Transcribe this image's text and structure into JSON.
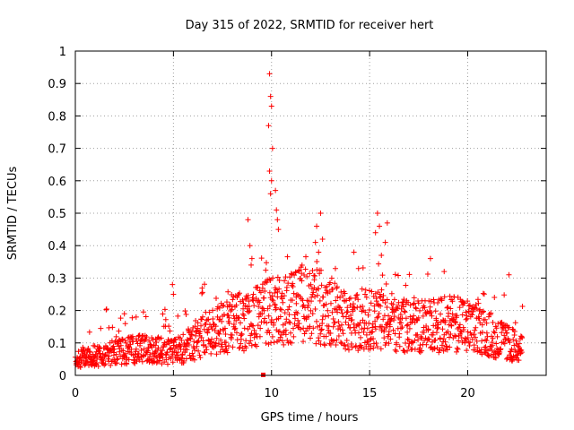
{
  "chart_data": {
    "type": "scatter",
    "title": "Day 315 of 2022, SRMTID for receiver hert",
    "xlabel": "GPS time / hours",
    "ylabel": "SRMTID / TECUs",
    "xlim": [
      0,
      24
    ],
    "ylim": [
      0,
      1
    ],
    "x_ticks": [
      0,
      5,
      10,
      15,
      20
    ],
    "x_tick_labels": [
      "0",
      "5",
      "10",
      "15",
      "20"
    ],
    "y_ticks": [
      0,
      0.1,
      0.2,
      0.3,
      0.4,
      0.5,
      0.6,
      0.7,
      0.8,
      0.9,
      1
    ],
    "y_tick_labels": [
      "0",
      "0.1",
      "0.2",
      "0.3",
      "0.4",
      "0.5",
      "0.6",
      "0.7",
      "0.8",
      "0.9",
      "1"
    ],
    "grid": true,
    "marker": "+",
    "color": "#ff0000",
    "x_end_hours": 22.8,
    "series": [
      {
        "name": "SRMTID",
        "envelope": {
          "hours": [
            0,
            1,
            2,
            3,
            4,
            5,
            6,
            7,
            8,
            9,
            10,
            11,
            12,
            13,
            14,
            15,
            16,
            17,
            18,
            19,
            20,
            21,
            22,
            22.8
          ],
          "typical": [
            0.05,
            0.06,
            0.07,
            0.08,
            0.08,
            0.07,
            0.1,
            0.14,
            0.16,
            0.17,
            0.2,
            0.21,
            0.22,
            0.2,
            0.17,
            0.17,
            0.17,
            0.15,
            0.15,
            0.16,
            0.15,
            0.13,
            0.1,
            0.08
          ]
        },
        "peaks": [
          {
            "x": 9.9,
            "y": 0.93
          },
          {
            "x": 9.95,
            "y": 0.86
          },
          {
            "x": 10.0,
            "y": 0.83
          },
          {
            "x": 9.85,
            "y": 0.77
          },
          {
            "x": 10.05,
            "y": 0.7
          },
          {
            "x": 9.9,
            "y": 0.63
          },
          {
            "x": 10.0,
            "y": 0.6
          },
          {
            "x": 9.95,
            "y": 0.56
          },
          {
            "x": 10.2,
            "y": 0.57
          },
          {
            "x": 10.25,
            "y": 0.51
          },
          {
            "x": 10.3,
            "y": 0.48
          },
          {
            "x": 10.35,
            "y": 0.45
          },
          {
            "x": 8.8,
            "y": 0.48
          },
          {
            "x": 8.9,
            "y": 0.4
          },
          {
            "x": 9.0,
            "y": 0.36
          },
          {
            "x": 12.5,
            "y": 0.5
          },
          {
            "x": 12.3,
            "y": 0.46
          },
          {
            "x": 12.6,
            "y": 0.42
          },
          {
            "x": 12.4,
            "y": 0.38
          },
          {
            "x": 14.2,
            "y": 0.38
          },
          {
            "x": 15.4,
            "y": 0.5
          },
          {
            "x": 15.5,
            "y": 0.46
          },
          {
            "x": 15.3,
            "y": 0.44
          },
          {
            "x": 15.9,
            "y": 0.47
          },
          {
            "x": 15.8,
            "y": 0.41
          },
          {
            "x": 15.6,
            "y": 0.37
          },
          {
            "x": 18.1,
            "y": 0.36
          },
          {
            "x": 18.8,
            "y": 0.32
          },
          {
            "x": 22.1,
            "y": 0.31
          },
          {
            "x": 4.95,
            "y": 0.28
          },
          {
            "x": 5.0,
            "y": 0.25
          },
          {
            "x": 2.5,
            "y": 0.19
          },
          {
            "x": 3.1,
            "y": 0.18
          }
        ]
      }
    ]
  }
}
